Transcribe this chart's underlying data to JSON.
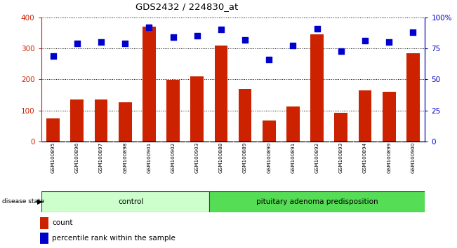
{
  "title": "GDS2432 / 224830_at",
  "samples": [
    "GSM100895",
    "GSM100896",
    "GSM100897",
    "GSM100898",
    "GSM100901",
    "GSM100902",
    "GSM100903",
    "GSM100888",
    "GSM100889",
    "GSM100890",
    "GSM100891",
    "GSM100892",
    "GSM100893",
    "GSM100894",
    "GSM100899",
    "GSM100900"
  ],
  "counts": [
    75,
    135,
    135,
    125,
    370,
    198,
    210,
    310,
    168,
    68,
    112,
    345,
    92,
    165,
    160,
    285
  ],
  "percentiles": [
    69,
    79,
    80,
    79,
    92,
    84,
    85,
    90,
    82,
    66,
    77,
    91,
    73,
    81,
    80,
    88
  ],
  "group_labels": [
    "control",
    "pituitary adenoma predisposition"
  ],
  "group_split": 7,
  "bar_color": "#cc2200",
  "dot_color": "#0000cc",
  "bg_color": "#ffffff",
  "label_bg_color": "#cccccc",
  "control_fill": "#ccffcc",
  "adenoma_fill": "#55dd55",
  "left_yaxis_color": "#cc2200",
  "right_yaxis_color": "#0000cc",
  "ylim_left": [
    0,
    400
  ],
  "ylim_right": [
    0,
    100
  ],
  "yticks_left": [
    0,
    100,
    200,
    300,
    400
  ],
  "yticks_right": [
    0,
    25,
    50,
    75,
    100
  ],
  "ytick_right_labels": [
    "0",
    "25",
    "50",
    "75",
    "100%"
  ],
  "disease_state_label": "disease state"
}
